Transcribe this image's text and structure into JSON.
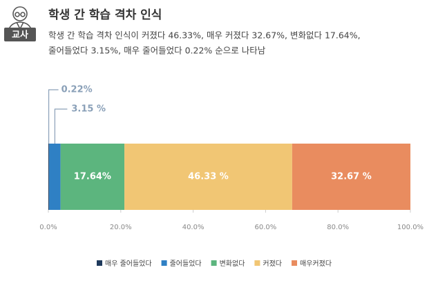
{
  "chart_data": {
    "type": "stacked-bar-horizontal",
    "badge": "교사",
    "title": "학생 간 학습 격차 인식",
    "subtitle": [
      "학생 간 학습 격차 인식이 커졌다 46.33%, 매우 커졌다 32.67%, 변화없다 17.64%,",
      "줄어들었다 3.15%, 매우 줄어들었다 0.22% 순으로 나타남"
    ],
    "categories": [
      null
    ],
    "series": [
      {
        "name": "매우 줄어들었다",
        "color": "#1f3a5c",
        "values": [
          0.22
        ],
        "value_labels": [
          "0.22%"
        ]
      },
      {
        "name": "줄어들었다",
        "color": "#2f80c4",
        "values": [
          3.15
        ],
        "value_labels": [
          "3.15 %"
        ]
      },
      {
        "name": "변화없다",
        "color": "#5cb57e",
        "values": [
          17.64
        ],
        "value_labels": [
          "17.64%"
        ]
      },
      {
        "name": "커졌다",
        "color": "#f1c674",
        "values": [
          46.33
        ],
        "value_labels": [
          "46.33 %"
        ]
      },
      {
        "name": "매우커졌다",
        "color": "#e98c5f",
        "values": [
          32.67
        ],
        "value_labels": [
          "32.67 %"
        ]
      }
    ],
    "xlim": [
      0,
      100
    ],
    "xticks": [
      {
        "value": 0,
        "label": "0.0%"
      },
      {
        "value": 20,
        "label": "20.0%"
      },
      {
        "value": 40,
        "label": "40.0%"
      },
      {
        "value": 60,
        "label": "60.0%"
      },
      {
        "value": 80,
        "label": "80.0%"
      },
      {
        "value": 100,
        "label": "100.0%"
      }
    ]
  }
}
